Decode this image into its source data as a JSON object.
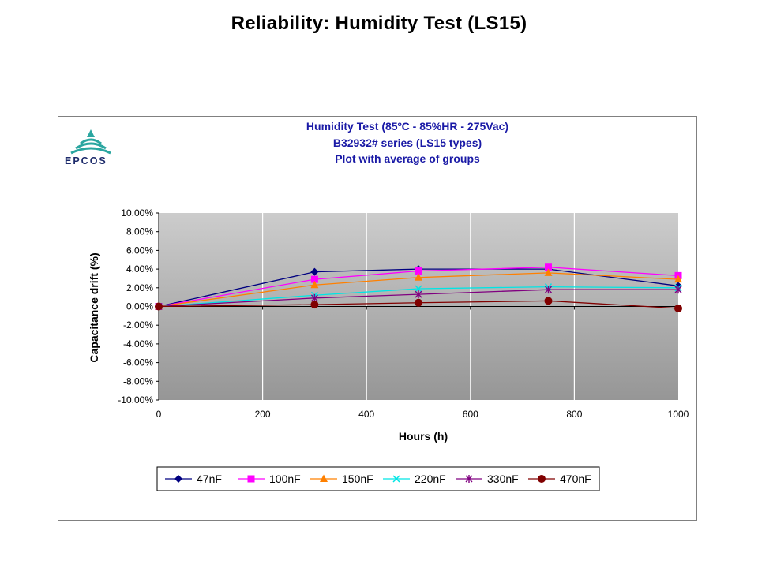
{
  "slide": {
    "title": "Reliability: Humidity Test (LS15)"
  },
  "logo": {
    "text": "EPCOS"
  },
  "colors": {
    "title_blue": "#1a1aa6",
    "plot_bg_top": "#c8c8c8",
    "plot_bg_bottom": "#9a9a9a",
    "grid": "#ffffff"
  },
  "chart_data": {
    "type": "line",
    "title": [
      "Humidity Test  (85ºC - 85%HR  - 275Vac)",
      "B32932# series (LS15 types)",
      "Plot with average of groups"
    ],
    "xlabel": "Hours (h)",
    "ylabel": "Capacitance drift (%)",
    "xlim": [
      0,
      1000
    ],
    "ylim": [
      -10,
      10
    ],
    "x_ticks": [
      "0",
      "200",
      "400",
      "600",
      "800",
      "1000"
    ],
    "y_ticks": [
      "10.00%",
      "8.00%",
      "6.00%",
      "4.00%",
      "2.00%",
      "0.00%",
      "-2.00%",
      "-4.00%",
      "-6.00%",
      "-8.00%",
      "-10.00%"
    ],
    "grid": "vertical",
    "legend_position": "bottom",
    "x": [
      0,
      300,
      500,
      750,
      1000
    ],
    "series": [
      {
        "name": "47nF",
        "color": "#000080",
        "marker": "diamond",
        "values": [
          0.0,
          3.7,
          4.0,
          4.0,
          2.2
        ]
      },
      {
        "name": "100nF",
        "color": "#ff00ff",
        "marker": "square",
        "values": [
          0.0,
          2.9,
          3.8,
          4.2,
          3.3
        ]
      },
      {
        "name": "150nF",
        "color": "#ff8000",
        "marker": "triangle",
        "values": [
          0.0,
          2.3,
          3.1,
          3.6,
          2.9
        ]
      },
      {
        "name": "220nF",
        "color": "#00e5e5",
        "marker": "x",
        "values": [
          0.0,
          1.2,
          1.9,
          2.1,
          2.0
        ]
      },
      {
        "name": "330nF",
        "color": "#800080",
        "marker": "star",
        "values": [
          0.0,
          0.9,
          1.3,
          1.8,
          1.8
        ]
      },
      {
        "name": "470nF",
        "color": "#800000",
        "marker": "circle",
        "values": [
          0.0,
          0.2,
          0.4,
          0.6,
          -0.2
        ]
      }
    ]
  }
}
